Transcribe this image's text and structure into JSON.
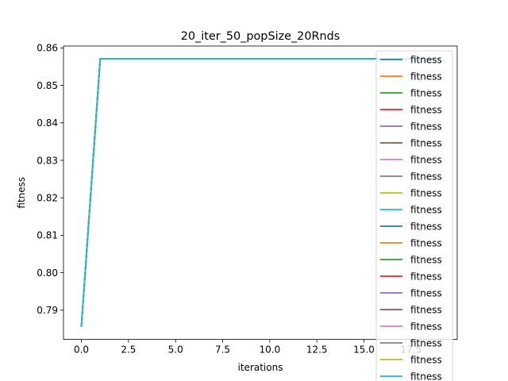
{
  "chart_data": {
    "type": "line",
    "title": "20_iter_50_popSize_20Rnds",
    "xlabel": "iterations",
    "ylabel": "fitness",
    "xlim": [
      -0.95,
      19.95
    ],
    "ylim": [
      0.7822,
      0.8605
    ],
    "x_ticks": [
      0.0,
      2.5,
      5.0,
      7.5,
      10.0,
      12.5,
      15.0,
      17.5
    ],
    "x_tick_labels": [
      "0.0",
      "2.5",
      "5.0",
      "7.5",
      "10.0",
      "12.5",
      "15.0",
      "17.5"
    ],
    "y_ticks": [
      0.79,
      0.8,
      0.81,
      0.82,
      0.83,
      0.84,
      0.85,
      0.86
    ],
    "y_tick_labels": [
      "0.79",
      "0.80",
      "0.81",
      "0.82",
      "0.83",
      "0.84",
      "0.85",
      "0.86"
    ],
    "grid": false,
    "legend_position": "top-right",
    "x": [
      0,
      1,
      2,
      3,
      4,
      5,
      6,
      7,
      8,
      9,
      10,
      11,
      12,
      13,
      14,
      15,
      16,
      17,
      18,
      19
    ],
    "series": [
      {
        "name": "fitness",
        "color": "#1f77b4",
        "values": [
          0.7857,
          0.8571,
          0.8571,
          0.8571,
          0.8571,
          0.8571,
          0.8571,
          0.8571,
          0.8571,
          0.8571,
          0.8571,
          0.8571,
          0.8571,
          0.8571,
          0.8571,
          0.8571,
          0.8571,
          0.8571,
          0.8571,
          0.8571
        ]
      },
      {
        "name": "fitness",
        "color": "#ff7f0e",
        "values": [
          0.7857,
          0.8571,
          0.8571,
          0.8571,
          0.8571,
          0.8571,
          0.8571,
          0.8571,
          0.8571,
          0.8571,
          0.8571,
          0.8571,
          0.8571,
          0.8571,
          0.8571,
          0.8571,
          0.8571,
          0.8571,
          0.8571,
          0.8571
        ]
      },
      {
        "name": "fitness",
        "color": "#2ca02c",
        "values": [
          0.7857,
          0.8571,
          0.8571,
          0.8571,
          0.8571,
          0.8571,
          0.8571,
          0.8571,
          0.8571,
          0.8571,
          0.8571,
          0.8571,
          0.8571,
          0.8571,
          0.8571,
          0.8571,
          0.8571,
          0.8571,
          0.8571,
          0.8571
        ]
      },
      {
        "name": "fitness",
        "color": "#d62728",
        "values": [
          0.7857,
          0.8571,
          0.8571,
          0.8571,
          0.8571,
          0.8571,
          0.8571,
          0.8571,
          0.8571,
          0.8571,
          0.8571,
          0.8571,
          0.8571,
          0.8571,
          0.8571,
          0.8571,
          0.8571,
          0.8571,
          0.8571,
          0.8571
        ]
      },
      {
        "name": "fitness",
        "color": "#9467bd",
        "values": [
          0.7857,
          0.8571,
          0.8571,
          0.8571,
          0.8571,
          0.8571,
          0.8571,
          0.8571,
          0.8571,
          0.8571,
          0.8571,
          0.8571,
          0.8571,
          0.8571,
          0.8571,
          0.8571,
          0.8571,
          0.8571,
          0.8571,
          0.8571
        ]
      },
      {
        "name": "fitness",
        "color": "#8c564b",
        "values": [
          0.7857,
          0.8571,
          0.8571,
          0.8571,
          0.8571,
          0.8571,
          0.8571,
          0.8571,
          0.8571,
          0.8571,
          0.8571,
          0.8571,
          0.8571,
          0.8571,
          0.8571,
          0.8571,
          0.8571,
          0.8571,
          0.8571,
          0.8571
        ]
      },
      {
        "name": "fitness",
        "color": "#e377c2",
        "values": [
          0.7857,
          0.8571,
          0.8571,
          0.8571,
          0.8571,
          0.8571,
          0.8571,
          0.8571,
          0.8571,
          0.8571,
          0.8571,
          0.8571,
          0.8571,
          0.8571,
          0.8571,
          0.8571,
          0.8571,
          0.8571,
          0.8571,
          0.8571
        ]
      },
      {
        "name": "fitness",
        "color": "#7f7f7f",
        "values": [
          0.7857,
          0.8571,
          0.8571,
          0.8571,
          0.8571,
          0.8571,
          0.8571,
          0.8571,
          0.8571,
          0.8571,
          0.8571,
          0.8571,
          0.8571,
          0.8571,
          0.8571,
          0.8571,
          0.8571,
          0.8571,
          0.8571,
          0.8571
        ]
      },
      {
        "name": "fitness",
        "color": "#bcbd22",
        "values": [
          0.7857,
          0.8571,
          0.8571,
          0.8571,
          0.8571,
          0.8571,
          0.8571,
          0.8571,
          0.8571,
          0.8571,
          0.8571,
          0.8571,
          0.8571,
          0.8571,
          0.8571,
          0.8571,
          0.8571,
          0.8571,
          0.8571,
          0.8571
        ]
      },
      {
        "name": "fitness",
        "color": "#17becf",
        "values": [
          0.7857,
          0.8571,
          0.8571,
          0.8571,
          0.8571,
          0.8571,
          0.8571,
          0.8571,
          0.8571,
          0.8571,
          0.8571,
          0.8571,
          0.8571,
          0.8571,
          0.8571,
          0.8571,
          0.8571,
          0.8571,
          0.8571,
          0.8571
        ]
      },
      {
        "name": "fitness",
        "color": "#1f77b4",
        "values": [
          0.7857,
          0.8571,
          0.8571,
          0.8571,
          0.8571,
          0.8571,
          0.8571,
          0.8571,
          0.8571,
          0.8571,
          0.8571,
          0.8571,
          0.8571,
          0.8571,
          0.8571,
          0.8571,
          0.8571,
          0.8571,
          0.8571,
          0.8571
        ]
      },
      {
        "name": "fitness",
        "color": "#ff7f0e",
        "values": [
          0.7857,
          0.8571,
          0.8571,
          0.8571,
          0.8571,
          0.8571,
          0.8571,
          0.8571,
          0.8571,
          0.8571,
          0.8571,
          0.8571,
          0.8571,
          0.8571,
          0.8571,
          0.8571,
          0.8571,
          0.8571,
          0.8571,
          0.8571
        ]
      },
      {
        "name": "fitness",
        "color": "#2ca02c",
        "values": [
          0.7857,
          0.8571,
          0.8571,
          0.8571,
          0.8571,
          0.8571,
          0.8571,
          0.8571,
          0.8571,
          0.8571,
          0.8571,
          0.8571,
          0.8571,
          0.8571,
          0.8571,
          0.8571,
          0.8571,
          0.8571,
          0.8571,
          0.8571
        ]
      },
      {
        "name": "fitness",
        "color": "#d62728",
        "values": [
          0.7857,
          0.8571,
          0.8571,
          0.8571,
          0.8571,
          0.8571,
          0.8571,
          0.8571,
          0.8571,
          0.8571,
          0.8571,
          0.8571,
          0.8571,
          0.8571,
          0.8571,
          0.8571,
          0.8571,
          0.8571,
          0.8571,
          0.8571
        ]
      },
      {
        "name": "fitness",
        "color": "#9467bd",
        "values": [
          0.7857,
          0.8571,
          0.8571,
          0.8571,
          0.8571,
          0.8571,
          0.8571,
          0.8571,
          0.8571,
          0.8571,
          0.8571,
          0.8571,
          0.8571,
          0.8571,
          0.8571,
          0.8571,
          0.8571,
          0.8571,
          0.8571,
          0.8571
        ]
      },
      {
        "name": "fitness",
        "color": "#8c564b",
        "values": [
          0.7857,
          0.8571,
          0.8571,
          0.8571,
          0.8571,
          0.8571,
          0.8571,
          0.8571,
          0.8571,
          0.8571,
          0.8571,
          0.8571,
          0.8571,
          0.8571,
          0.8571,
          0.8571,
          0.8571,
          0.8571,
          0.8571,
          0.8571
        ]
      },
      {
        "name": "fitness",
        "color": "#e377c2",
        "values": [
          0.7857,
          0.8571,
          0.8571,
          0.8571,
          0.8571,
          0.8571,
          0.8571,
          0.8571,
          0.8571,
          0.8571,
          0.8571,
          0.8571,
          0.8571,
          0.8571,
          0.8571,
          0.8571,
          0.8571,
          0.8571,
          0.8571,
          0.8571
        ]
      },
      {
        "name": "fitness",
        "color": "#7f7f7f",
        "values": [
          0.7857,
          0.8571,
          0.8571,
          0.8571,
          0.8571,
          0.8571,
          0.8571,
          0.8571,
          0.8571,
          0.8571,
          0.8571,
          0.8571,
          0.8571,
          0.8571,
          0.8571,
          0.8571,
          0.8571,
          0.8571,
          0.8571,
          0.8571
        ]
      },
      {
        "name": "fitness",
        "color": "#bcbd22",
        "values": [
          0.7857,
          0.8571,
          0.8571,
          0.8571,
          0.8571,
          0.8571,
          0.8571,
          0.8571,
          0.8571,
          0.8571,
          0.8571,
          0.8571,
          0.8571,
          0.8571,
          0.8571,
          0.8571,
          0.8571,
          0.8571,
          0.8571,
          0.8571
        ]
      },
      {
        "name": "fitness",
        "color": "#17becf",
        "values": [
          0.7857,
          0.8571,
          0.8571,
          0.8571,
          0.8571,
          0.8571,
          0.8571,
          0.8571,
          0.8571,
          0.8571,
          0.8571,
          0.8571,
          0.8571,
          0.8571,
          0.8571,
          0.8571,
          0.8571,
          0.8571,
          0.8571,
          0.8571
        ]
      }
    ]
  }
}
